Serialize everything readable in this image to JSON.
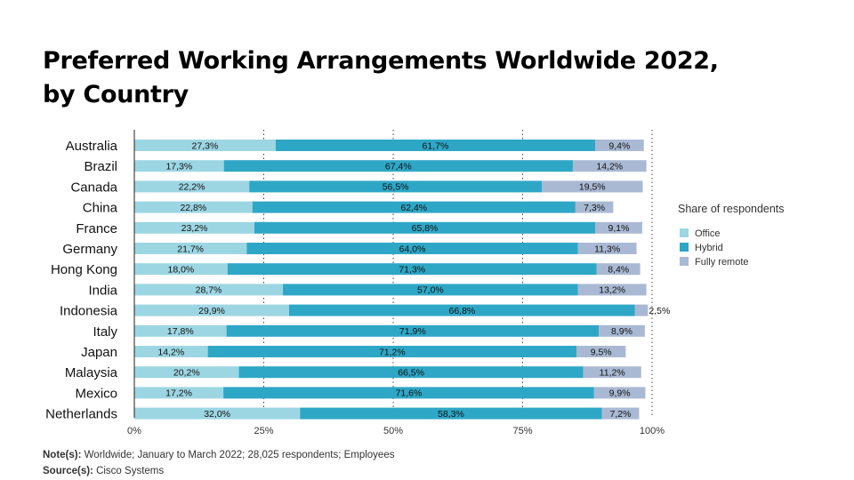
{
  "title_line1": "Preferred Working Arrangements Worldwide 2022,",
  "title_line2": "by Country",
  "notes": {
    "note_label": "Note(s):",
    "note_text": " Worldwide; January to March 2022; 28,025 respondents; Employees",
    "source_label": "Source(s):",
    "source_text": " Cisco Systems"
  },
  "colors": {
    "office": "#9dd6e3",
    "hybrid": "#2ea7c6",
    "remote": "#a9b9d3"
  },
  "chart_data": {
    "type": "bar",
    "orientation": "horizontal",
    "stacked": true,
    "categories": [
      "Australia",
      "Brazil",
      "Canada",
      "China",
      "France",
      "Germany",
      "Hong Kong",
      "India",
      "Indonesia",
      "Italy",
      "Japan",
      "Malaysia",
      "Mexico",
      "Netherlands"
    ],
    "series": [
      {
        "name": "Office",
        "values": [
          27.3,
          17.3,
          22.2,
          22.8,
          23.2,
          21.7,
          18.0,
          28.7,
          29.9,
          17.8,
          14.2,
          20.2,
          17.2,
          32.0
        ],
        "labels": [
          "27,3%",
          "17,3%",
          "22,2%",
          "22,8%",
          "23,2%",
          "21,7%",
          "18,0%",
          "28,7%",
          "29,9%",
          "17,8%",
          "14,2%",
          "20,2%",
          "17,2%",
          "32,0%"
        ]
      },
      {
        "name": "Hybrid",
        "values": [
          61.7,
          67.4,
          56.5,
          62.4,
          65.8,
          64.0,
          71.3,
          57.0,
          66.8,
          71.9,
          71.2,
          66.5,
          71.6,
          58.3
        ],
        "labels": [
          "61,7%",
          "67,4%",
          "56,5%",
          "62,4%",
          "65,8%",
          "64,0%",
          "71,3%",
          "57,0%",
          "66,8%",
          "71,9%",
          "71,2%",
          "66,5%",
          "71,6%",
          "58,3%"
        ]
      },
      {
        "name": "Fully remote",
        "values": [
          9.4,
          14.2,
          19.5,
          7.3,
          9.1,
          11.3,
          8.4,
          13.2,
          2.5,
          8.9,
          9.5,
          11.2,
          9.9,
          7.2
        ],
        "labels": [
          "9,4%",
          "14,2%",
          "19,5%",
          "7,3%",
          "9,1%",
          "11,3%",
          "8,4%",
          "13,2%",
          "2,5%",
          "8,9%",
          "9,5%",
          "11,2%",
          "9,9%",
          "7,2%"
        ]
      }
    ],
    "xlim": [
      0,
      100
    ],
    "xticks": [
      0,
      25,
      50,
      75,
      100
    ],
    "xtick_labels": [
      "0%",
      "25%",
      "50%",
      "75%",
      "100%"
    ],
    "legend_title": "Share of respondents",
    "legend_position": "right",
    "grid": "dotted vertical"
  }
}
